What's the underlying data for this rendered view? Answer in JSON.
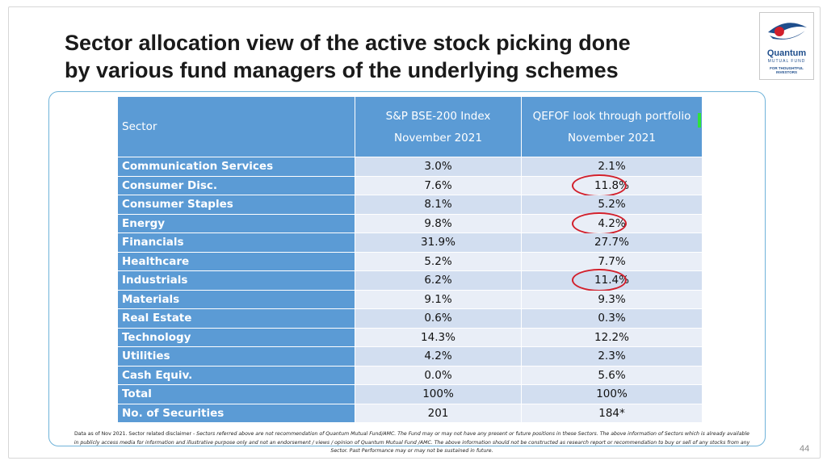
{
  "slide": {
    "title_line1": "Sector allocation view of the active stock picking done",
    "title_line2": "by various fund managers of the underlying schemes",
    "page_number": "44"
  },
  "logo": {
    "name": "Quantum",
    "sub": "MUTUAL FUND",
    "tagline": "FOR THOUGHTFUL INVESTORS"
  },
  "table": {
    "headers": {
      "sector": "Sector",
      "col1_line1": "S&P BSE-200 Index",
      "col1_line2": "November 2021",
      "col2_line1": "QEFOF look through portfolio",
      "col2_line2": "November 2021"
    },
    "rows": [
      {
        "sector": "Communication Services",
        "index": "3.0%",
        "qefof": "2.1%",
        "circled": false
      },
      {
        "sector": "Consumer Disc.",
        "index": "7.6%",
        "qefof": "11.8%",
        "circled": true
      },
      {
        "sector": "Consumer Staples",
        "index": "8.1%",
        "qefof": "5.2%",
        "circled": false
      },
      {
        "sector": "Energy",
        "index": "9.8%",
        "qefof": "4.2%",
        "circled": true
      },
      {
        "sector": "Financials",
        "index": "31.9%",
        "qefof": "27.7%",
        "circled": false
      },
      {
        "sector": "Healthcare",
        "index": "5.2%",
        "qefof": "7.7%",
        "circled": false
      },
      {
        "sector": "Industrials",
        "index": "6.2%",
        "qefof": "11.4%",
        "circled": true
      },
      {
        "sector": "Materials",
        "index": "9.1%",
        "qefof": "9.3%",
        "circled": false
      },
      {
        "sector": "Real Estate",
        "index": "0.6%",
        "qefof": "0.3%",
        "circled": false
      },
      {
        "sector": "Technology",
        "index": "14.3%",
        "qefof": "12.2%",
        "circled": false
      },
      {
        "sector": "Utilities",
        "index": "4.2%",
        "qefof": "2.3%",
        "circled": false
      },
      {
        "sector": "Cash Equiv.",
        "index": "0.0%",
        "qefof": "5.6%",
        "circled": false
      },
      {
        "sector": "Total",
        "index": "100%",
        "qefof": "100%",
        "circled": false
      },
      {
        "sector": "No. of  Securities",
        "index": "201",
        "qefof": "184*",
        "circled": false
      }
    ]
  },
  "disclaimer": {
    "lead": "Data as of Nov 2021. Sector related disclaimer - ",
    "rest": "Sectors referred above are not recommendation of Quantum Mutual Fund/AMC. The Fund may or may not have any present or future positions in these Sectors. The above information of Sectors which is already available in publicly access media for information and illustrative purpose only and not an endorsement / views / opinion of Quantum Mutual Fund /AMC. The above information should not be constructed as research report or recommendation to buy or sell of any stocks from any Sector. Past Performance may or may not be  sustained in future."
  },
  "colors": {
    "header_blue": "#5b9bd5",
    "row_light": "#e9eef7",
    "row_mid": "#d2def0",
    "circle_red": "#d21f2b",
    "marker_green": "#2fe33a"
  }
}
